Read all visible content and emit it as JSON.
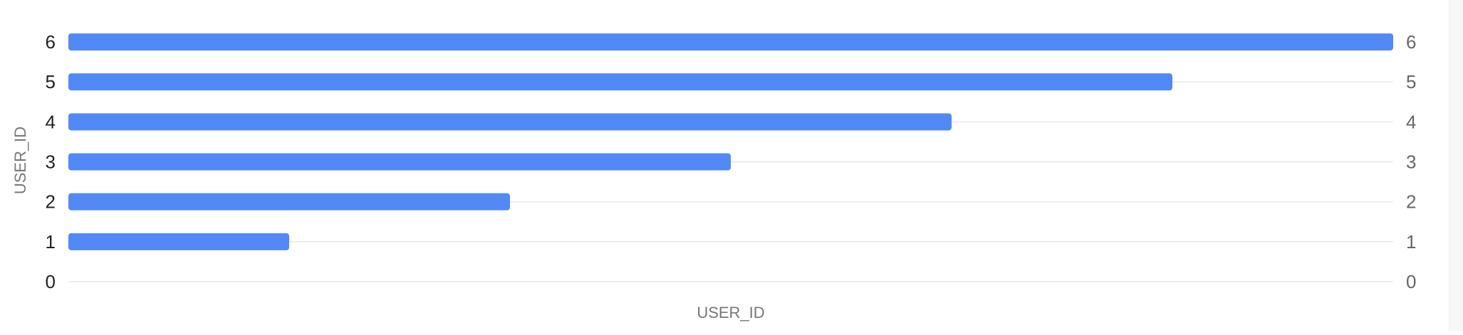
{
  "chart_data": {
    "type": "bar",
    "orientation": "horizontal",
    "categories": [
      "1",
      "2",
      "3",
      "4",
      "5",
      "6"
    ],
    "values": [
      1,
      2,
      3,
      4,
      5,
      6
    ],
    "xlabel": "USER_ID",
    "ylabel": "USER_ID",
    "xlim": [
      0,
      6
    ],
    "ylim": [
      0,
      6
    ],
    "y_ticks": [
      "0",
      "1",
      "2",
      "3",
      "4",
      "5",
      "6"
    ],
    "secondary_y_ticks": [
      "0",
      "1",
      "2",
      "3",
      "4",
      "5",
      "6"
    ],
    "grid": "horizontal",
    "legend": "none",
    "colors": {
      "bar": "#5289f5",
      "grid": "#e8e8ec",
      "left_tick": "#222222",
      "right_tick": "#666666",
      "axis_title": "#777777"
    }
  }
}
